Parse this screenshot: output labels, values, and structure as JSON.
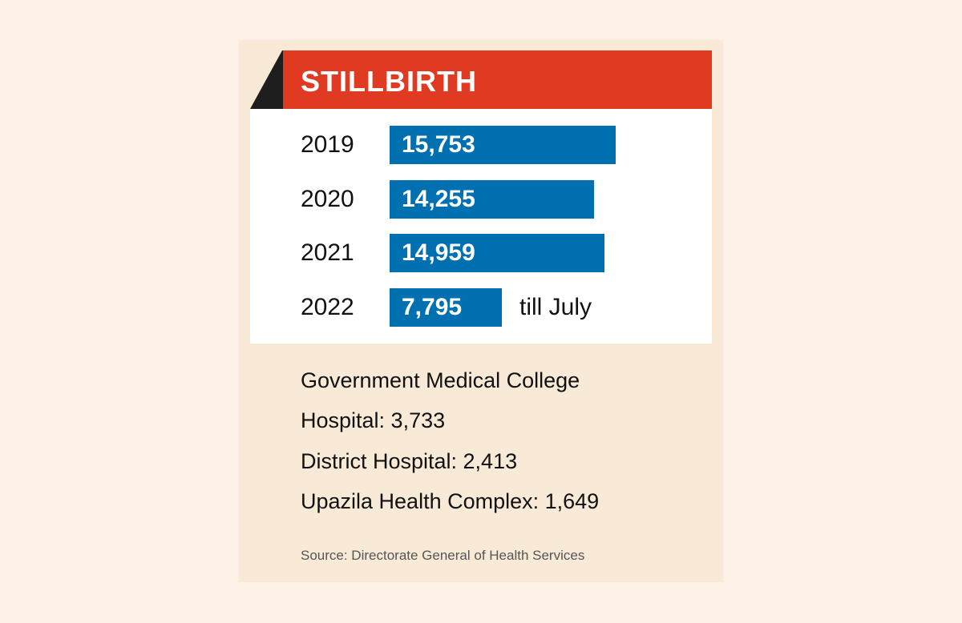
{
  "colors": {
    "page_bg": "#fdf0e6",
    "panel_bg": "#f8ead7",
    "header_red": "#e03a22",
    "header_accent": "#1e1e1e",
    "bar_blue": "#0070b0"
  },
  "chart_data": {
    "type": "bar",
    "orientation": "horizontal",
    "title": "STILLBIRTH",
    "categories": [
      "2019",
      "2020",
      "2021",
      "2022"
    ],
    "values": [
      15753,
      14255,
      14959,
      7795
    ],
    "value_labels": [
      "15,753",
      "14,255",
      "14,959",
      "7,795"
    ],
    "annotations": [
      {
        "category": "2022",
        "text": "till July"
      }
    ],
    "xlabel": "",
    "ylabel": "",
    "grid": false
  },
  "breakdown": [
    {
      "text": "Government Medical College"
    },
    {
      "text": "Hospital: 3,733"
    },
    {
      "text": "District Hospital: 2,413"
    },
    {
      "text": "Upazila Health Complex: 1,649"
    }
  ],
  "source": "Source: Directorate General of Health Services"
}
